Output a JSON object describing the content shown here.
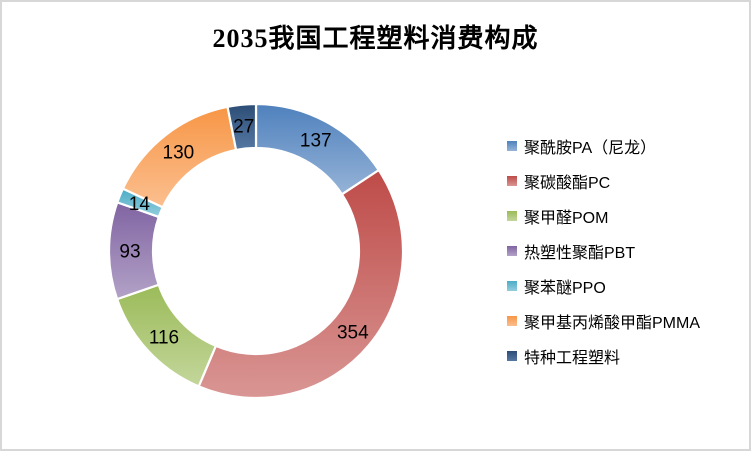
{
  "page": {
    "background_color": "#ffffff",
    "border_color": "#d7d7d7"
  },
  "chart_data": {
    "type": "pie",
    "subtype": "donut",
    "title": "2035我国工程塑料消费构成",
    "legend_position": "right",
    "start_angle_deg": 0,
    "direction": "clockwise",
    "donut_hole_ratio": 0.7,
    "data_labels_shown": true,
    "label_color": "#000000",
    "series": [
      {
        "name": "聚酰胺PA（尼龙）",
        "value": 137,
        "color": "#4F81BD",
        "color_light": "#95B3D7"
      },
      {
        "name": "聚碳酸酯PC",
        "value": 354,
        "color": "#BE4B48",
        "color_light": "#D99694"
      },
      {
        "name": "聚甲醛POM",
        "value": 116,
        "color": "#9BBB59",
        "color_light": "#C3D69B"
      },
      {
        "name": "热塑性聚酯PBT",
        "value": 93,
        "color": "#8064A2",
        "color_light": "#B3A2C7"
      },
      {
        "name": "聚苯醚PPO",
        "value": 14,
        "color": "#4BACC6",
        "color_light": "#93CDDD"
      },
      {
        "name": "聚甲基丙烯酸甲酯PMMA",
        "value": 130,
        "color": "#F79646",
        "color_light": "#FBBF8F"
      },
      {
        "name": "特种工程塑料",
        "value": 27,
        "color": "#2C4D75",
        "color_light": "#5578A3"
      }
    ]
  }
}
